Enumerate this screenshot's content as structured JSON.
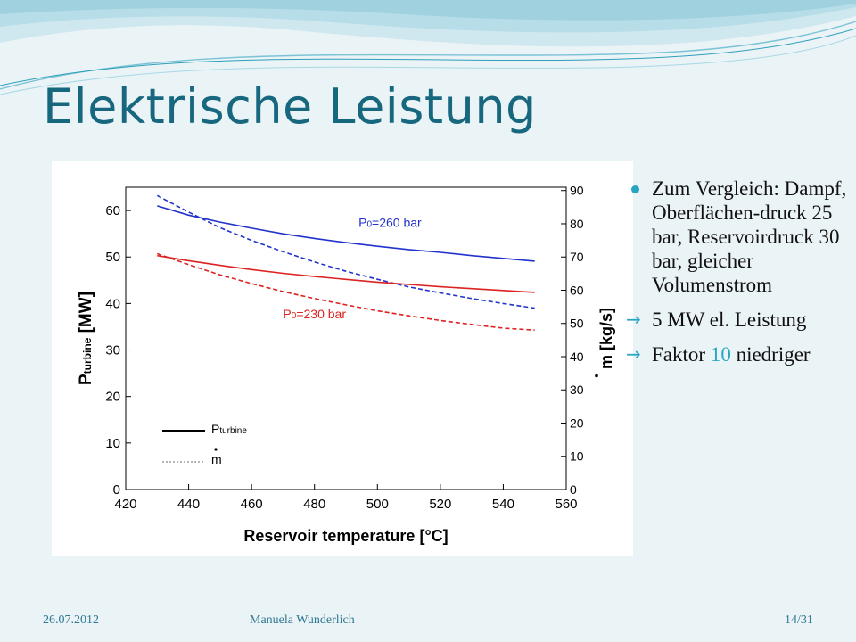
{
  "slide": {
    "title": "Elektrische Leistung",
    "colors": {
      "title": "#17677f",
      "accent": "#27a6c2",
      "background": "#eaf3f6"
    }
  },
  "bullets": [
    {
      "marker": "dot-icon",
      "text": "Zum Vergleich: Dampf, Oberflächen-druck 25 bar, Reservoirdruck 30 bar, gleicher Volumenstrom"
    },
    {
      "marker": "arrow-icon",
      "text": "5 MW el. Leistung"
    },
    {
      "marker": "arrow-icon",
      "text_before": "Faktor ",
      "highlight": "10",
      "text_after": " niedriger"
    }
  ],
  "footer": {
    "date": "26.07.2012",
    "author": "Manuela Wunderlich",
    "page": "14/31"
  },
  "chart_data": {
    "type": "line",
    "xlabel": "Reservoir temperature [°C]",
    "ylabel_left": {
      "base": "P",
      "sub": "turbine",
      "unit": " [MW]"
    },
    "ylabel_right": {
      "base": "m",
      "unit": " [kg/s]"
    },
    "xlim": [
      420,
      560
    ],
    "ylim_left": [
      0,
      65
    ],
    "ylim_right": [
      0,
      91
    ],
    "x_ticks": [
      420,
      440,
      460,
      480,
      500,
      520,
      540,
      560
    ],
    "y_ticks_left": [
      0,
      10,
      20,
      30,
      40,
      50,
      60
    ],
    "y_ticks_right": [
      0,
      10,
      20,
      30,
      40,
      50,
      60,
      70,
      80,
      90
    ],
    "grid": false,
    "legend": {
      "placement": "bottom-left",
      "entries": [
        {
          "label_base": "P",
          "label_sub": "turbine",
          "style": "solid"
        },
        {
          "label_base": "m",
          "style": "dotted"
        }
      ]
    },
    "annotations": [
      {
        "text_base": "P",
        "text_sub": "0",
        "text_after": "=260 bar",
        "color": "#2233cc",
        "x": 504,
        "y": 56.5,
        "axis": "left"
      },
      {
        "text_base": "P",
        "text_sub": "0",
        "text_after": "=230 bar",
        "color": "#dd2222",
        "x": 480,
        "y": 36.8,
        "axis": "left"
      }
    ],
    "series": [
      {
        "color": "#2233cc",
        "style": "solid",
        "axis": "left",
        "x": [
          430,
          440,
          450,
          460,
          470,
          480,
          490,
          500,
          510,
          520,
          530,
          540,
          550
        ],
        "y": [
          61.0,
          59.0,
          57.5,
          56.2,
          55.0,
          54.0,
          53.1,
          52.3,
          51.6,
          51.0,
          50.3,
          49.7,
          49.1
        ]
      },
      {
        "color": "#2233cc",
        "style": "dashed",
        "axis": "right",
        "x": [
          430,
          440,
          450,
          460,
          470,
          480,
          490,
          500,
          510,
          520,
          530,
          540,
          550
        ],
        "y": [
          88.5,
          83.5,
          78.8,
          75.0,
          71.6,
          68.5,
          65.7,
          63.3,
          61.0,
          59.2,
          57.5,
          56.0,
          54.6
        ]
      },
      {
        "color": "#dd2222",
        "style": "solid",
        "axis": "left",
        "x": [
          430,
          440,
          450,
          460,
          470,
          480,
          490,
          500,
          510,
          520,
          530,
          540,
          550
        ],
        "y": [
          50.3,
          49.2,
          48.2,
          47.3,
          46.5,
          45.8,
          45.2,
          44.6,
          44.1,
          43.6,
          43.2,
          42.8,
          42.4
        ]
      },
      {
        "color": "#dd2222",
        "style": "dashed",
        "axis": "right",
        "x": [
          430,
          440,
          450,
          460,
          470,
          480,
          490,
          500,
          510,
          520,
          530,
          540,
          550
        ],
        "y": [
          71.0,
          67.7,
          64.6,
          62.0,
          59.6,
          57.5,
          55.6,
          53.8,
          52.3,
          50.9,
          49.7,
          48.6,
          48.0
        ]
      }
    ]
  }
}
